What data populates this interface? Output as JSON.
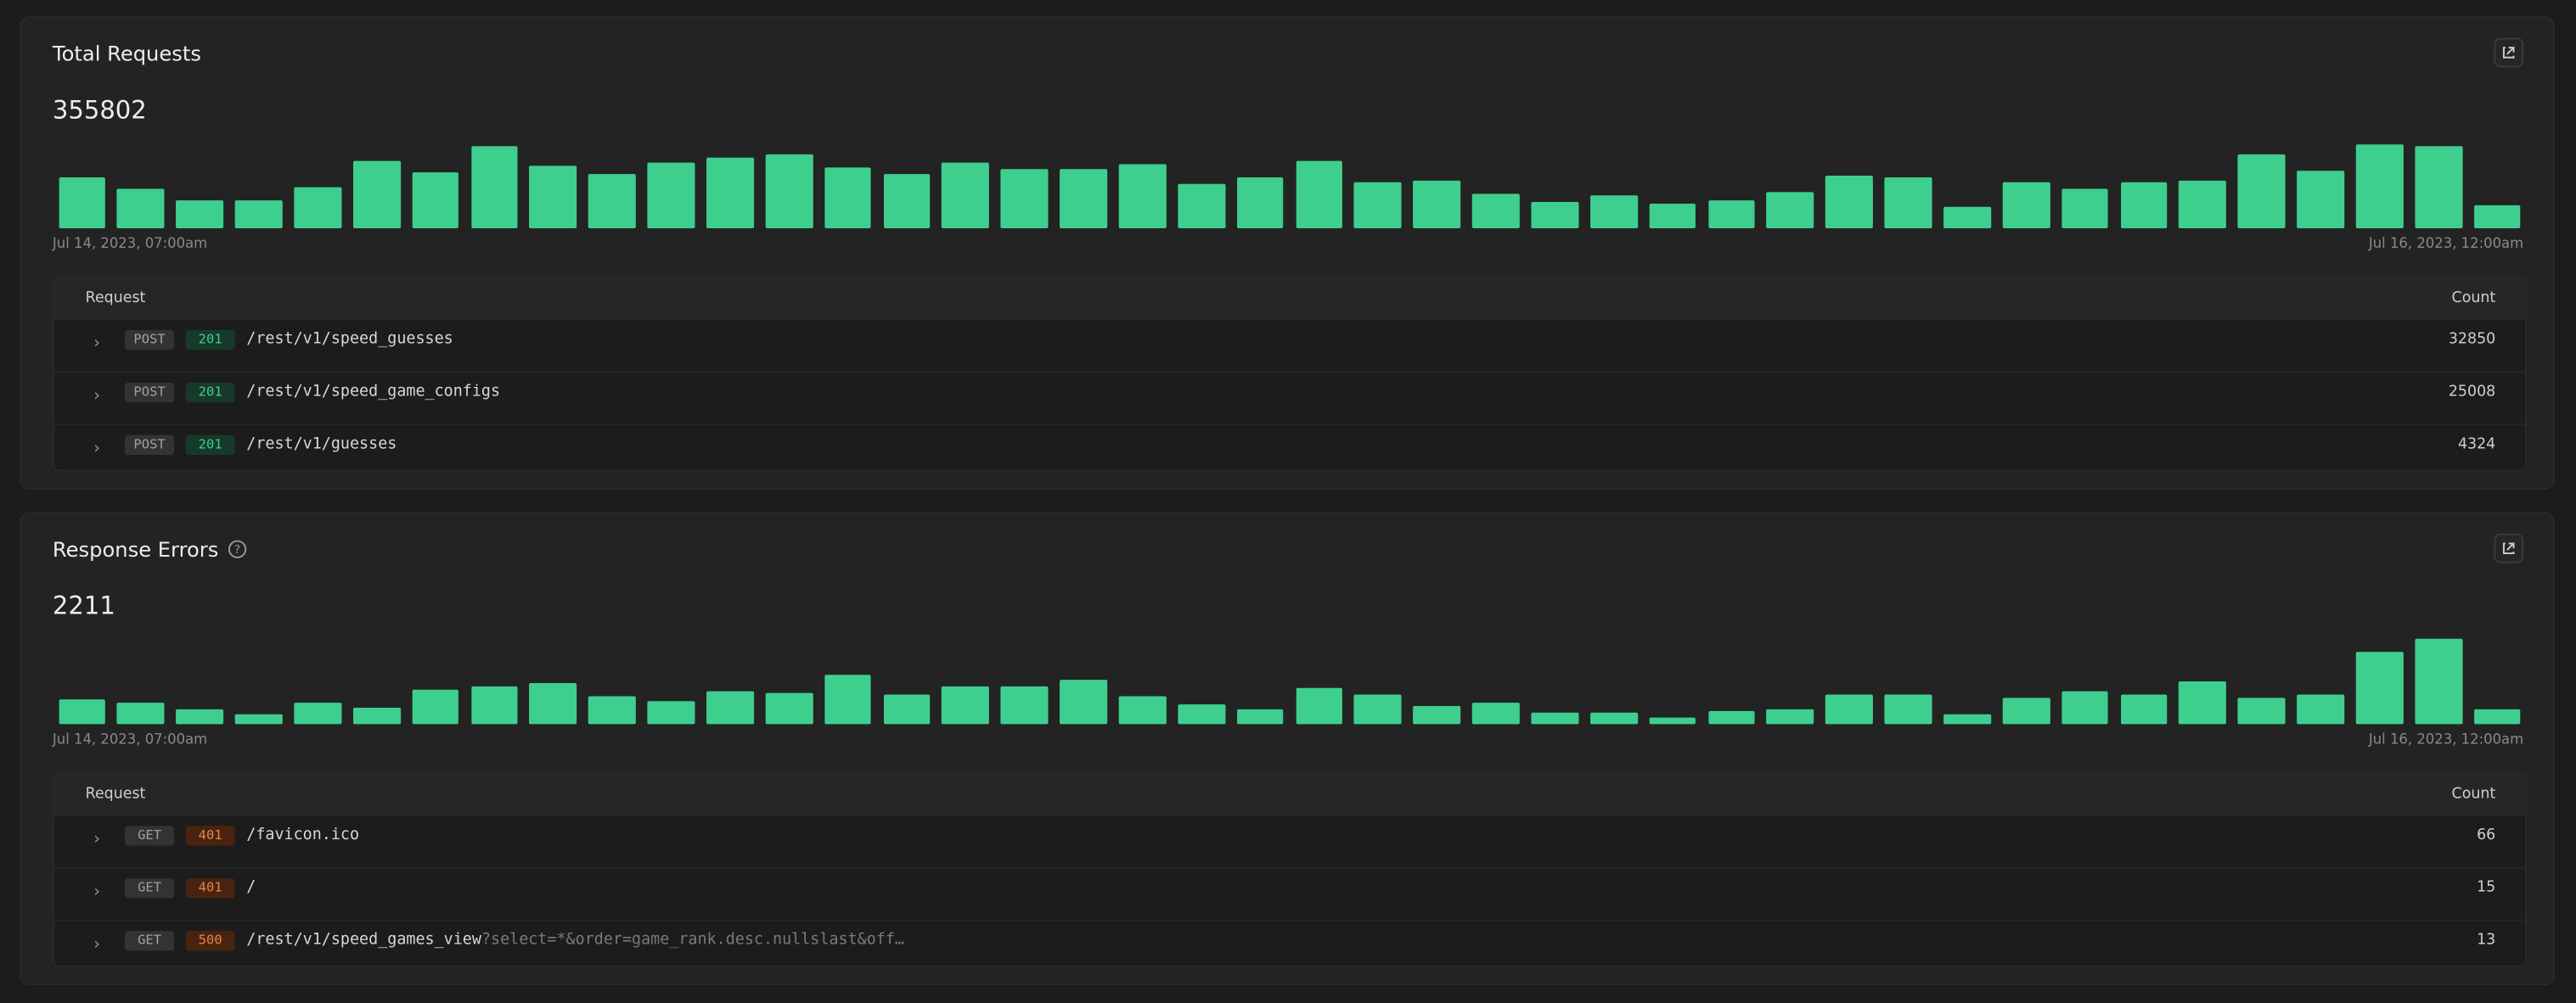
{
  "panels": [
    {
      "title": "Total Requests",
      "total": 355802,
      "bars": [
        31,
        24,
        17,
        17,
        25,
        41,
        34,
        50,
        38,
        33,
        40,
        43,
        45,
        37,
        33,
        40,
        36,
        36,
        39,
        27,
        31,
        41,
        28,
        29,
        21,
        16,
        20,
        15,
        17,
        22,
        32,
        31,
        13,
        28,
        24,
        28,
        29,
        45,
        35,
        51,
        50,
        14
      ],
      "start_label": "Jul 14, 2023, 07:00am",
      "end_label": "Jul 16, 2023, 12:00am",
      "columns": [
        "Request",
        "Count"
      ],
      "rows": [
        {
          "method": "POST",
          "status": 201,
          "path": "/rest/v1/speed_guesses",
          "count": 32850
        },
        {
          "method": "POST",
          "status": 201,
          "path": "/rest/v1/speed_game_configs",
          "count": 25008
        },
        {
          "method": "POST",
          "status": 201,
          "path": "/rest/v1/guesses",
          "count": 4324
        }
      ]
    },
    {
      "title": "Response Errors",
      "total": 2211,
      "bars": [
        15,
        13,
        9,
        6,
        13,
        10,
        21,
        23,
        25,
        17,
        14,
        20,
        19,
        30,
        18,
        23,
        23,
        27,
        17,
        12,
        9,
        22,
        18,
        11,
        13,
        7,
        7,
        4,
        8,
        9,
        18,
        18,
        6,
        16,
        20,
        18,
        26,
        16,
        18,
        44,
        52,
        9
      ],
      "start_label": "Jul 14, 2023, 07:00am",
      "end_label": "Jul 16, 2023, 12:00am",
      "columns": [
        "Request",
        "Count"
      ],
      "rows": [
        {
          "method": "GET",
          "status": 401,
          "path": "/favicon.ico",
          "count": 66
        },
        {
          "method": "GET",
          "status": 401,
          "path": "/",
          "count": 15
        },
        {
          "method": "GET",
          "status": 500,
          "path": "/rest/v1/speed_games_view",
          "query": "?select=*&order=game_rank.desc.nullslast&off…",
          "count": 13
        }
      ]
    }
  ]
}
